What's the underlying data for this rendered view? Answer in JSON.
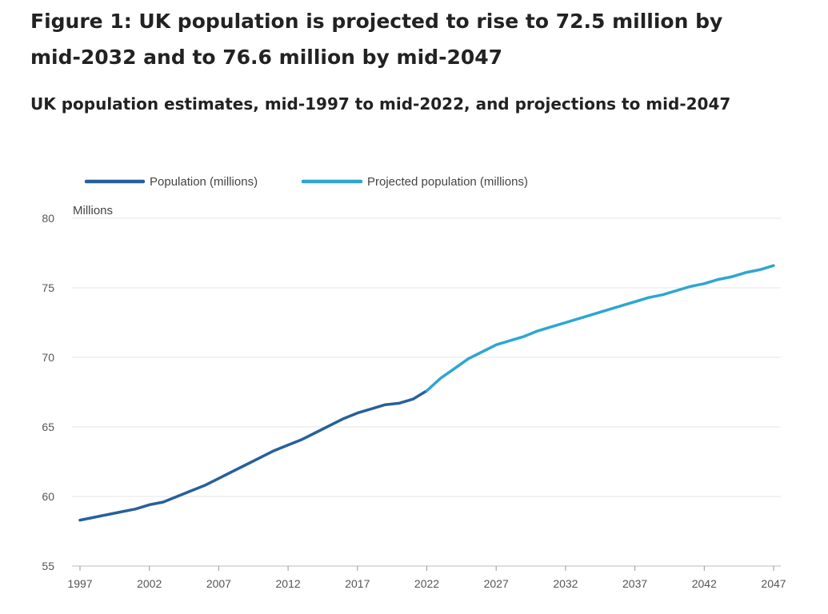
{
  "chart_data": {
    "type": "line",
    "title": "Figure 1: UK population is projected to rise to 72.5 million by mid-2032 and to 76.6 million by mid-2047",
    "subtitle": "UK population estimates, mid-1997 to mid-2022, and projections to mid-2047",
    "ylabel": "Millions",
    "xlabel": "",
    "ylim": [
      55,
      80
    ],
    "yticks": [
      "55",
      "60",
      "65",
      "70",
      "75",
      "80"
    ],
    "xticks": [
      "1997",
      "2002",
      "2007",
      "2012",
      "2017",
      "2022",
      "2027",
      "2032",
      "2037",
      "2042",
      "2047"
    ],
    "xlim": [
      1997,
      2047
    ],
    "grid": true,
    "legend": "top-left",
    "series": [
      {
        "name": "Population (millions)",
        "color": "#27609a",
        "x": [
          1997,
          1998,
          1999,
          2000,
          2001,
          2002,
          2003,
          2004,
          2005,
          2006,
          2007,
          2008,
          2009,
          2010,
          2011,
          2012,
          2013,
          2014,
          2015,
          2016,
          2017,
          2018,
          2019,
          2020,
          2021,
          2022
        ],
        "values": [
          58.3,
          58.5,
          58.7,
          58.9,
          59.1,
          59.4,
          59.6,
          60.0,
          60.4,
          60.8,
          61.3,
          61.8,
          62.3,
          62.8,
          63.3,
          63.7,
          64.1,
          64.6,
          65.1,
          65.6,
          66.0,
          66.3,
          66.6,
          66.7,
          67.0,
          67.6
        ]
      },
      {
        "name": "Projected population (millions)",
        "color": "#2ea6d1",
        "x": [
          2022,
          2023,
          2024,
          2025,
          2026,
          2027,
          2028,
          2029,
          2030,
          2031,
          2032,
          2033,
          2034,
          2035,
          2036,
          2037,
          2038,
          2039,
          2040,
          2041,
          2042,
          2043,
          2044,
          2045,
          2046,
          2047
        ],
        "values": [
          67.6,
          68.5,
          69.2,
          69.9,
          70.4,
          70.9,
          71.2,
          71.5,
          71.9,
          72.2,
          72.5,
          72.8,
          73.1,
          73.4,
          73.7,
          74.0,
          74.3,
          74.5,
          74.8,
          75.1,
          75.3,
          75.6,
          75.8,
          76.1,
          76.3,
          76.6
        ]
      }
    ]
  }
}
